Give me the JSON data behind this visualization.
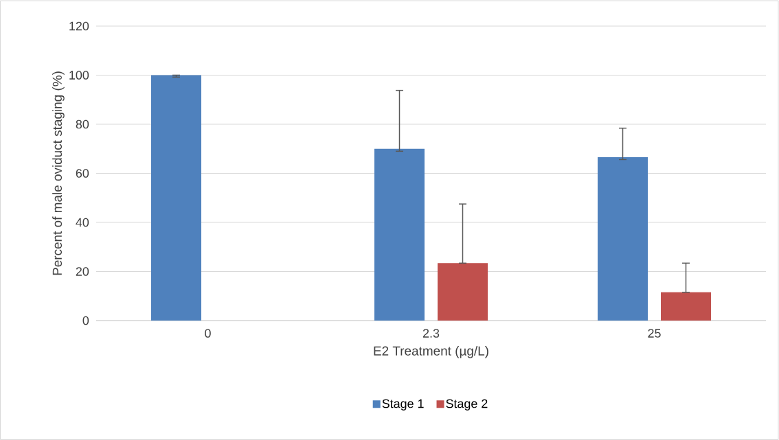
{
  "chart_data": {
    "type": "bar",
    "xlabel": "E2 Treatment (µg/L)",
    "ylabel": "Percent of male oviduct staging (%)",
    "categories": [
      "0",
      "2.3",
      "25"
    ],
    "series": [
      {
        "name": "Stage 1",
        "color": "#4f81bd",
        "values": [
          100,
          70,
          66.6
        ],
        "errors": [
          [
            99.2,
            100
          ],
          [
            69,
            93.8
          ],
          [
            65.6,
            78.4
          ]
        ]
      },
      {
        "name": "Stage 2",
        "color": "#c0504d",
        "values": [
          0,
          23.4,
          11.5
        ],
        "errors": [
          null,
          [
            23.4,
            47.5
          ],
          [
            11.5,
            23.4
          ]
        ]
      }
    ],
    "ylim": [
      0,
      120
    ],
    "yticks": [
      0,
      20,
      40,
      60,
      80,
      100,
      120
    ],
    "grid": "y",
    "legend": "bottom"
  }
}
